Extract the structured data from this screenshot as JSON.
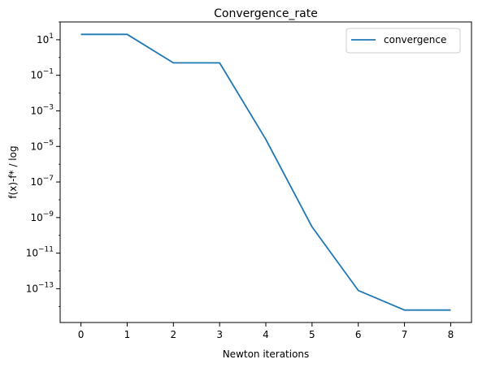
{
  "chart_data": {
    "type": "line",
    "title": "Convergence_rate",
    "xlabel": "Newton iterations",
    "ylabel": "f(x)-f* / log",
    "yscale": "log",
    "xlim": [
      -0.45,
      8.45
    ],
    "ylim_log10": [
      -14.9,
      2.0
    ],
    "grid": false,
    "legend_placement": "top-right",
    "x_ticks": [
      0,
      1,
      2,
      3,
      4,
      5,
      6,
      7,
      8
    ],
    "y_ticks": [
      {
        "base": "10",
        "exp": "1",
        "log10": 1
      },
      {
        "base": "10",
        "exp": "−1",
        "log10": -1
      },
      {
        "base": "10",
        "exp": "−3",
        "log10": -3
      },
      {
        "base": "10",
        "exp": "−5",
        "log10": -5
      },
      {
        "base": "10",
        "exp": "−7",
        "log10": -7
      },
      {
        "base": "10",
        "exp": "−9",
        "log10": -9
      },
      {
        "base": "10",
        "exp": "−11",
        "log10": -11
      },
      {
        "base": "10",
        "exp": "−13",
        "log10": -13
      }
    ],
    "series": [
      {
        "name": "convergence",
        "color": "#1f77b4",
        "x": [
          0,
          1,
          2,
          3,
          4,
          5,
          6,
          7,
          8
        ],
        "y": [
          20,
          20,
          0.5,
          0.5,
          2.5e-05,
          3e-10,
          8e-14,
          6.3e-15,
          6.3e-15
        ]
      }
    ]
  }
}
